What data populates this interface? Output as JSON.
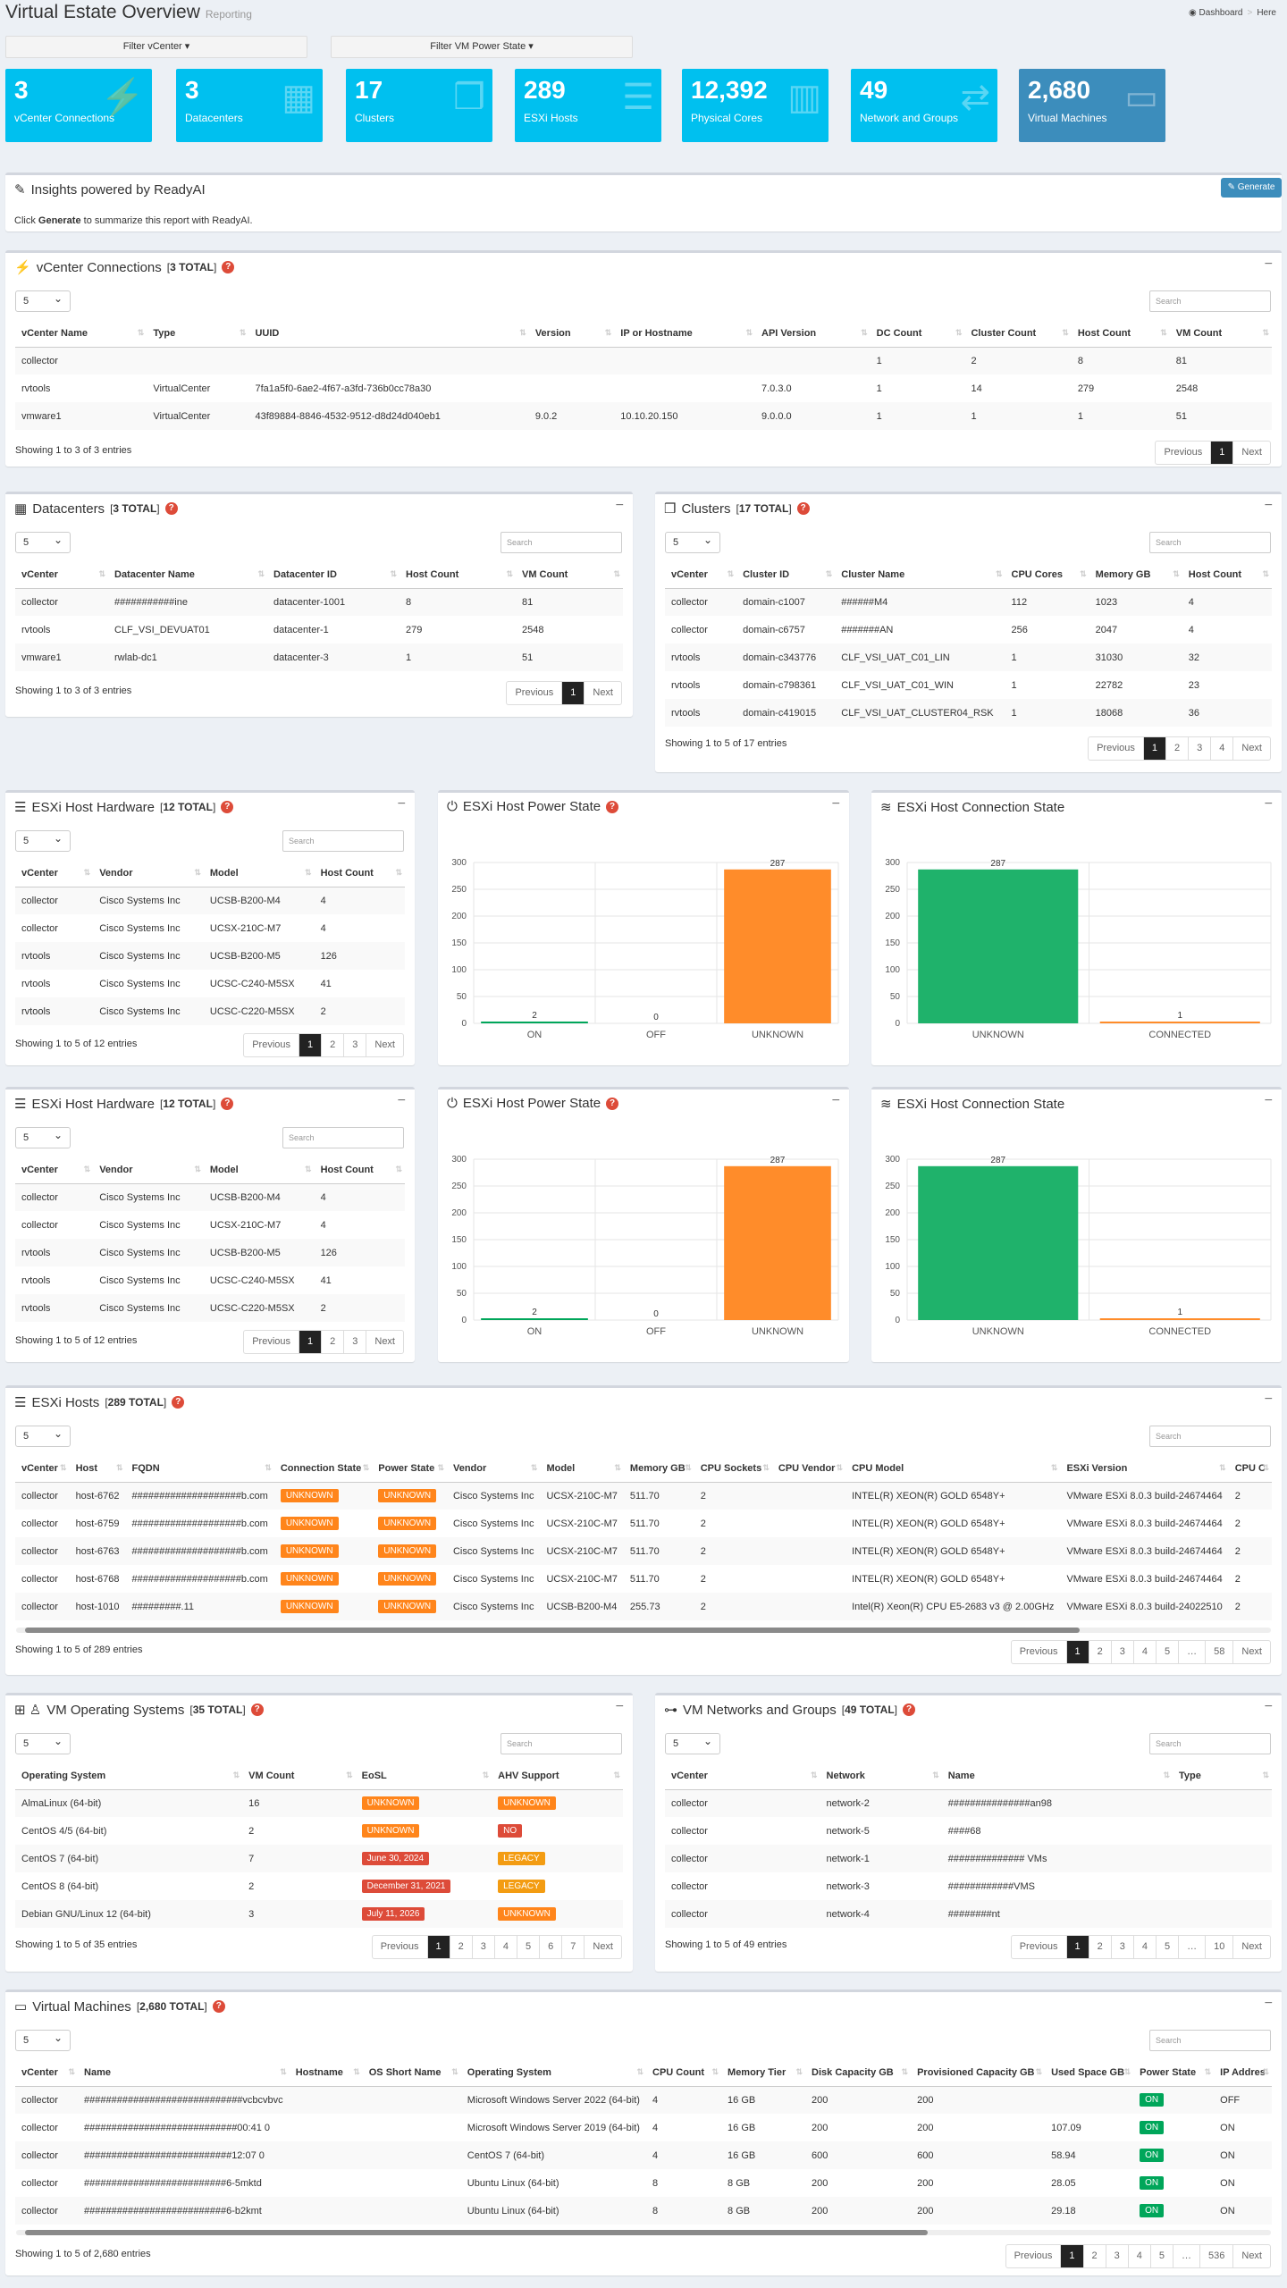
{
  "header": {
    "title": "Virtual Estate Overview",
    "subtitle": "Reporting",
    "crumb_home": "Dashboard",
    "crumb_here": "Here"
  },
  "filters": {
    "vcenter": "Filter vCenter ▾",
    "power": "Filter VM Power State ▾"
  },
  "tiles": [
    {
      "num": "3",
      "label": "vCenter Connections"
    },
    {
      "num": "3",
      "label": "Datacenters"
    },
    {
      "num": "17",
      "label": "Clusters"
    },
    {
      "num": "289",
      "label": "ESXi Hosts"
    },
    {
      "num": "12,392",
      "label": "Physical Cores"
    },
    {
      "num": "49",
      "label": "Network and Groups"
    },
    {
      "num": "2,680",
      "label": "Virtual Machines"
    }
  ],
  "insights": {
    "title": "Insights powered by ReadyAI",
    "generate": "Generate",
    "text_pre": "Click ",
    "text_bold": "Generate",
    "text_post": " to summarize this report with ReadyAI."
  },
  "common": {
    "page_size": "5",
    "search": "Search",
    "prev": "Previous",
    "next": "Next",
    "ellipsis": "…"
  },
  "vcenter": {
    "title": "vCenter Connections",
    "count": "3 TOTAL",
    "columns": [
      "vCenter Name",
      "Type",
      "UUID",
      "Version",
      "IP or Hostname",
      "API Version",
      "DC Count",
      "Cluster Count",
      "Host Count",
      "VM Count"
    ],
    "rows": [
      [
        "collector",
        "",
        "",
        "",
        "",
        "",
        "1",
        "2",
        "8",
        "81"
      ],
      [
        "rvtools",
        "VirtualCenter",
        "7fa1a5f0-6ae2-4f67-a3fd-736b0cc78a30",
        "",
        "",
        "7.0.3.0",
        "1",
        "14",
        "279",
        "2548"
      ],
      [
        "vmware1",
        "VirtualCenter",
        "43f89884-8846-4532-9512-d8d24d040eb1",
        "9.0.2",
        "10.10.20.150",
        "9.0.0.0",
        "1",
        "1",
        "1",
        "51"
      ]
    ],
    "info": "Showing 1 to 3 of 3 entries",
    "pages": [
      "1"
    ]
  },
  "datacenters": {
    "title": "Datacenters",
    "count": "3 TOTAL",
    "columns": [
      "vCenter",
      "Datacenter Name",
      "Datacenter ID",
      "Host Count",
      "VM Count"
    ],
    "rows": [
      [
        "collector",
        "###########ine",
        "datacenter-1001",
        "8",
        "81"
      ],
      [
        "rvtools",
        "CLF_VSI_DEVUAT01",
        "datacenter-1",
        "279",
        "2548"
      ],
      [
        "vmware1",
        "rwlab-dc1",
        "datacenter-3",
        "1",
        "51"
      ]
    ],
    "info": "Showing 1 to 3 of 3 entries",
    "pages": [
      "1"
    ]
  },
  "clusters": {
    "title": "Clusters",
    "count": "17 TOTAL",
    "columns": [
      "vCenter",
      "Cluster ID",
      "Cluster Name",
      "CPU Cores",
      "Memory GB",
      "Host Count"
    ],
    "rows": [
      [
        "collector",
        "domain-c1007",
        "######M4",
        "112",
        "1023",
        "4"
      ],
      [
        "collector",
        "domain-c6757",
        "#######AN",
        "256",
        "2047",
        "4"
      ],
      [
        "rvtools",
        "domain-c343776",
        "CLF_VSI_UAT_C01_LIN",
        "1",
        "31030",
        "32"
      ],
      [
        "rvtools",
        "domain-c798361",
        "CLF_VSI_UAT_C01_WIN",
        "1",
        "22782",
        "23"
      ],
      [
        "rvtools",
        "domain-c419015",
        "CLF_VSI_UAT_CLUSTER04_RSK",
        "1",
        "18068",
        "36"
      ]
    ],
    "info": "Showing 1 to 5 of 17 entries",
    "pages": [
      "1",
      "2",
      "3",
      "4"
    ]
  },
  "hosthw": {
    "title": "ESXi Host Hardware",
    "count": "12 TOTAL",
    "columns": [
      "vCenter",
      "Vendor",
      "Model",
      "Host Count"
    ],
    "rows": [
      [
        "collector",
        "Cisco Systems Inc",
        "UCSB-B200-M4",
        "4"
      ],
      [
        "collector",
        "Cisco Systems Inc",
        "UCSX-210C-M7",
        "4"
      ],
      [
        "rvtools",
        "Cisco Systems Inc",
        "UCSB-B200-M5",
        "126"
      ],
      [
        "rvtools",
        "Cisco Systems Inc",
        "UCSC-C240-M5SX",
        "41"
      ],
      [
        "rvtools",
        "Cisco Systems Inc",
        "UCSC-C220-M5SX",
        "2"
      ]
    ],
    "info": "Showing 1 to 5 of 12 entries",
    "pages": [
      "1",
      "2",
      "3"
    ]
  },
  "power_title": "ESXi Host Power State",
  "conn_title": "ESXi Host Connection State",
  "chart_data": [
    {
      "type": "bar",
      "categories": [
        "ON",
        "OFF",
        "UNKNOWN"
      ],
      "values": [
        2,
        0,
        287
      ],
      "ylim": [
        0,
        300
      ],
      "yticks": [
        0,
        50,
        100,
        150,
        200,
        250,
        300
      ],
      "colors": [
        "#00a65a",
        "#00a65a",
        "#ff8c2a"
      ],
      "grid": true
    },
    {
      "type": "bar",
      "categories": [
        "UNKNOWN",
        "CONNECTED"
      ],
      "values": [
        287,
        1
      ],
      "ylim": [
        0,
        300
      ],
      "yticks": [
        0,
        50,
        100,
        150,
        200,
        250,
        300
      ],
      "colors": [
        "#1fb26b",
        "#ff8c2a"
      ],
      "grid": true
    }
  ],
  "esxihosts": {
    "title": "ESXi Hosts",
    "count": "289 TOTAL",
    "columns": [
      "vCenter",
      "Host",
      "FQDN",
      "Connection State",
      "Power State",
      "Vendor",
      "Model",
      "Memory GB",
      "CPU Sockets",
      "CPU Vendor",
      "CPU Model",
      "ESXi Version",
      "CPU C"
    ],
    "rows": [
      [
        "collector",
        "host-6762",
        "####################b.com",
        "UNKNOWN",
        "UNKNOWN",
        "Cisco Systems Inc",
        "UCSX-210C-M7",
        "511.70",
        "2",
        "",
        "INTEL(R) XEON(R) GOLD 6548Y+",
        "VMware ESXi 8.0.3 build-24674464",
        "2"
      ],
      [
        "collector",
        "host-6759",
        "####################b.com",
        "UNKNOWN",
        "UNKNOWN",
        "Cisco Systems Inc",
        "UCSX-210C-M7",
        "511.70",
        "2",
        "",
        "INTEL(R) XEON(R) GOLD 6548Y+",
        "VMware ESXi 8.0.3 build-24674464",
        "2"
      ],
      [
        "collector",
        "host-6763",
        "####################b.com",
        "UNKNOWN",
        "UNKNOWN",
        "Cisco Systems Inc",
        "UCSX-210C-M7",
        "511.70",
        "2",
        "",
        "INTEL(R) XEON(R) GOLD 6548Y+",
        "VMware ESXi 8.0.3 build-24674464",
        "2"
      ],
      [
        "collector",
        "host-6768",
        "####################b.com",
        "UNKNOWN",
        "UNKNOWN",
        "Cisco Systems Inc",
        "UCSX-210C-M7",
        "511.70",
        "2",
        "",
        "INTEL(R) XEON(R) GOLD 6548Y+",
        "VMware ESXi 8.0.3 build-24674464",
        "2"
      ],
      [
        "collector",
        "host-1010",
        "#########.11",
        "UNKNOWN",
        "UNKNOWN",
        "Cisco Systems Inc",
        "UCSB-B200-M4",
        "255.73",
        "2",
        "",
        "Intel(R) Xeon(R) CPU E5-2683 v3 @ 2.00GHz",
        "VMware ESXi 8.0.3 build-24022510",
        "2"
      ]
    ],
    "info": "Showing 1 to 5 of 289 entries",
    "pages": [
      "1",
      "2",
      "3",
      "4",
      "5",
      "…",
      "58"
    ]
  },
  "vmos": {
    "title": "VM Operating Systems",
    "count": "35 TOTAL",
    "columns": [
      "Operating System",
      "VM Count",
      "EoSL",
      "AHV Support"
    ],
    "rows": [
      [
        "AlmaLinux (64-bit)",
        "16",
        "UNKNOWN",
        "UNKNOWN"
      ],
      [
        "CentOS 4/5 (64-bit)",
        "2",
        "UNKNOWN",
        "NO"
      ],
      [
        "CentOS 7 (64-bit)",
        "7",
        "June 30, 2024",
        "LEGACY"
      ],
      [
        "CentOS 8 (64-bit)",
        "2",
        "December 31, 2021",
        "LEGACY"
      ],
      [
        "Debian GNU/Linux 12 (64-bit)",
        "3",
        "July 11, 2026",
        "UNKNOWN"
      ]
    ],
    "info": "Showing 1 to 5 of 35 entries",
    "pages": [
      "1",
      "2",
      "3",
      "4",
      "5",
      "6",
      "7"
    ]
  },
  "vmnet": {
    "title": "VM Networks and Groups",
    "count": "49 TOTAL",
    "columns": [
      "vCenter",
      "Network",
      "Name",
      "Type"
    ],
    "rows": [
      [
        "collector",
        "network-2",
        "###############an98",
        ""
      ],
      [
        "collector",
        "network-5",
        "####68",
        ""
      ],
      [
        "collector",
        "network-1",
        "############## VMs",
        ""
      ],
      [
        "collector",
        "network-3",
        "############VMS",
        ""
      ],
      [
        "collector",
        "network-4",
        "########nt",
        ""
      ]
    ],
    "info": "Showing 1 to 5 of 49 entries",
    "pages": [
      "1",
      "2",
      "3",
      "4",
      "5",
      "…",
      "10"
    ]
  },
  "vms": {
    "title": "Virtual Machines",
    "count": "2,680 TOTAL",
    "columns": [
      "vCenter",
      "Name",
      "Hostname",
      "OS Short Name",
      "Operating System",
      "CPU Count",
      "Memory Tier",
      "Disk Capacity GB",
      "Provisioned Capacity GB",
      "Used Space GB",
      "Power State",
      "IP Addres"
    ],
    "rows": [
      [
        "collector",
        "#############################vcbcvbvc",
        "",
        "",
        "Microsoft Windows Server 2022 (64-bit)",
        "4",
        "16 GB",
        "200",
        "200",
        "",
        "ON",
        "OFF"
      ],
      [
        "collector",
        "############################00:41 0",
        "",
        "",
        "Microsoft Windows Server 2019 (64-bit)",
        "4",
        "16 GB",
        "200",
        "200",
        "107.09",
        "ON",
        "ON"
      ],
      [
        "collector",
        "###########################12:07 0",
        "",
        "",
        "CentOS 7 (64-bit)",
        "4",
        "16 GB",
        "600",
        "600",
        "58.94",
        "ON",
        "ON"
      ],
      [
        "collector",
        "##########################6-5mktd",
        "",
        "",
        "Ubuntu Linux (64-bit)",
        "8",
        "8 GB",
        "200",
        "200",
        "28.05",
        "ON",
        "ON"
      ],
      [
        "collector",
        "##########################6-b2kmt",
        "",
        "",
        "Ubuntu Linux (64-bit)",
        "8",
        "8 GB",
        "200",
        "200",
        "29.18",
        "ON",
        "ON"
      ]
    ],
    "info": "Showing 1 to 5 of 2,680 entries",
    "pages": [
      "1",
      "2",
      "3",
      "4",
      "5",
      "…",
      "536"
    ]
  }
}
